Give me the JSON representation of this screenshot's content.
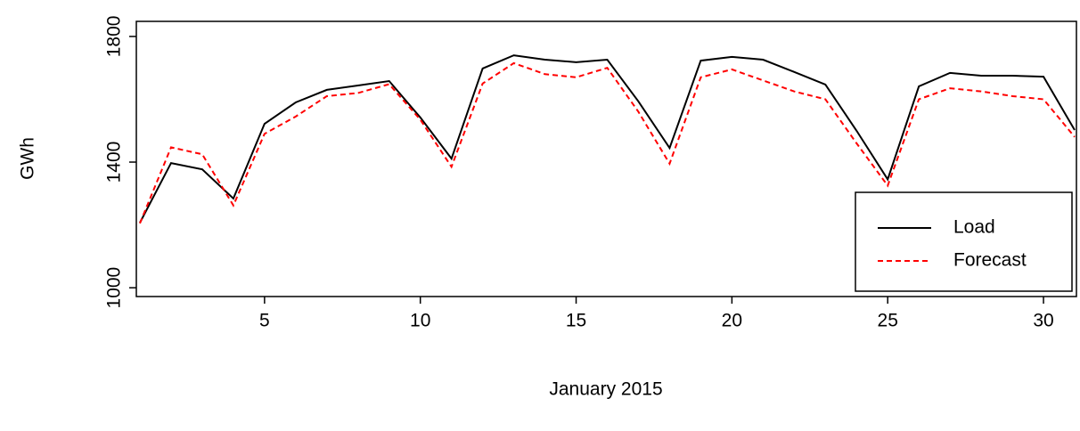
{
  "chart_data": {
    "type": "line",
    "x_label": "January 2015",
    "y_label": "GWh",
    "x": [
      1,
      2,
      3,
      4,
      5,
      6,
      7,
      8,
      9,
      10,
      11,
      12,
      13,
      14,
      15,
      16,
      17,
      18,
      19,
      20,
      21,
      22,
      23,
      24,
      25,
      26,
      27,
      28,
      29,
      30,
      31
    ],
    "series": [
      {
        "name": "Load",
        "color": "#000000",
        "dash": false,
        "values": [
          1207,
          1397,
          1377,
          1284,
          1522,
          1590,
          1630,
          1644,
          1658,
          1542,
          1411,
          1698,
          1740,
          1726,
          1718,
          1726,
          1593,
          1445,
          1723,
          1735,
          1726,
          1687,
          1647,
          1500,
          1345,
          1641,
          1684,
          1675,
          1675,
          1672,
          1502
        ]
      },
      {
        "name": "Forecast",
        "color": "#ff0000",
        "dash": true,
        "values": [
          1205,
          1447,
          1425,
          1262,
          1490,
          1545,
          1610,
          1620,
          1648,
          1535,
          1385,
          1650,
          1715,
          1680,
          1670,
          1700,
          1560,
          1395,
          1670,
          1695,
          1660,
          1625,
          1600,
          1460,
          1325,
          1600,
          1635,
          1625,
          1610,
          1600,
          1480
        ]
      }
    ],
    "xlim": [
      1,
      31
    ],
    "xticks": [
      5,
      10,
      15,
      20,
      25,
      30
    ],
    "ylim": [
      972,
      1848
    ],
    "yticks": [
      1000,
      1400,
      1800
    ],
    "legend_position": "bottom-right"
  }
}
